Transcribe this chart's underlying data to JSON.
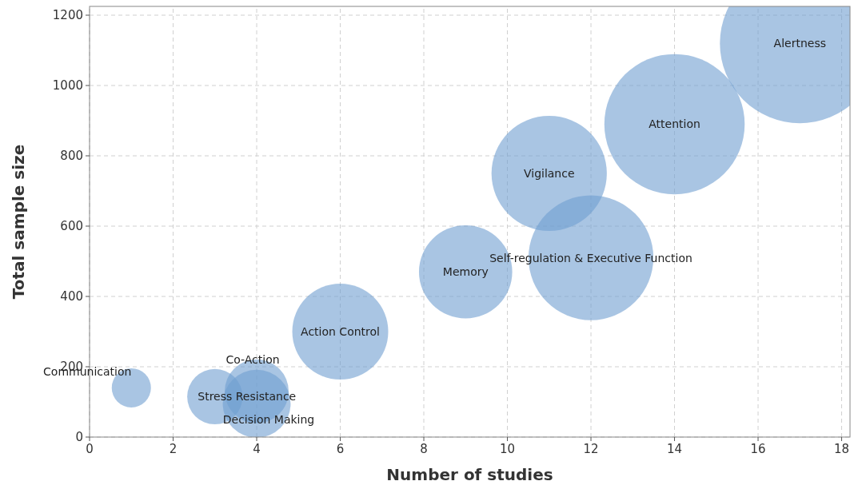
{
  "chart_data": {
    "type": "bubble",
    "xlabel": "Number of studies",
    "ylabel": "Total sample size",
    "x": [
      1,
      3,
      4,
      4,
      6,
      9,
      11,
      12,
      14,
      17
    ],
    "values": [
      140,
      115,
      130,
      95,
      300,
      470,
      750,
      510,
      890,
      1120
    ],
    "sizes": [
      0.06,
      0.12,
      0.16,
      0.18,
      0.36,
      0.34,
      0.52,
      0.61,
      0.77,
      1
    ],
    "color": "#6f9fd0",
    "xlim": [
      0,
      18.2
    ],
    "ylim": [
      0,
      1225
    ],
    "xticks": [
      0,
      2,
      4,
      6,
      8,
      10,
      12,
      14,
      16,
      18
    ],
    "yticks": [
      0,
      200,
      400,
      600,
      800,
      1000,
      1200
    ],
    "grid": true,
    "annotations": [
      {
        "text": "Communication",
        "x": 1,
        "y": 140
      },
      {
        "text": "Stress Resistance",
        "x": 3,
        "y": 115
      },
      {
        "text": "Co-Action",
        "x": 4,
        "y": 130
      },
      {
        "text": "Decision Making",
        "x": 4,
        "y": 95
      },
      {
        "text": "Action Control",
        "x": 6,
        "y": 300
      },
      {
        "text": "Memory",
        "x": 9,
        "y": 470
      },
      {
        "text": "Vigilance",
        "x": 11,
        "y": 750
      },
      {
        "text": "Self-regulation & Executive Function",
        "x": 12,
        "y": 510
      },
      {
        "text": "Attention",
        "x": 14,
        "y": 890
      },
      {
        "text": "Alertness",
        "x": 17,
        "y": 1120
      }
    ]
  }
}
